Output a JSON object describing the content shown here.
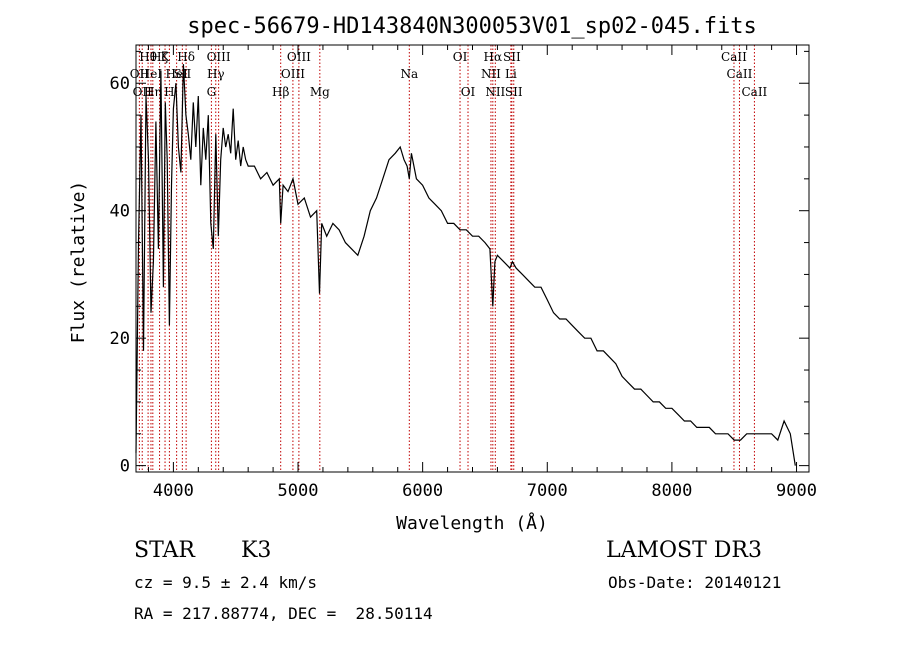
{
  "chart_data": {
    "type": "line",
    "title": "spec-56679-HD143840N300053V01_sp02-045.fits",
    "xlabel": "Wavelength (Å)",
    "ylabel": "Flux (relative)",
    "xlim": [
      3700,
      9100
    ],
    "ylim": [
      -1,
      66
    ],
    "x_ticks": [
      4000,
      5000,
      6000,
      7000,
      8000,
      9000
    ],
    "y_ticks": [
      0,
      20,
      40,
      60
    ],
    "grid": false,
    "series": [
      {
        "x": [
          3700,
          3720,
          3740,
          3760,
          3780,
          3800,
          3820,
          3840,
          3860,
          3880,
          3900,
          3920,
          3935,
          3950,
          3968,
          3985,
          4000,
          4020,
          4040,
          4060,
          4080,
          4100,
          4120,
          4140,
          4160,
          4180,
          4200,
          4220,
          4240,
          4260,
          4280,
          4300,
          4320,
          4340,
          4360,
          4380,
          4400,
          4420,
          4440,
          4460,
          4480,
          4500,
          4520,
          4540,
          4560,
          4580,
          4600,
          4650,
          4700,
          4750,
          4800,
          4850,
          4861,
          4880,
          4920,
          4960,
          5000,
          5050,
          5100,
          5150,
          5172,
          5190,
          5230,
          5280,
          5330,
          5380,
          5430,
          5480,
          5530,
          5580,
          5630,
          5680,
          5730,
          5780,
          5820,
          5850,
          5875,
          5893,
          5910,
          5950,
          6000,
          6050,
          6100,
          6150,
          6200,
          6250,
          6300,
          6350,
          6400,
          6450,
          6500,
          6540,
          6563,
          6580,
          6600,
          6650,
          6700,
          6720,
          6750,
          6800,
          6850,
          6900,
          6950,
          7000,
          7050,
          7100,
          7150,
          7200,
          7250,
          7300,
          7350,
          7400,
          7450,
          7500,
          7550,
          7600,
          7650,
          7700,
          7750,
          7800,
          7850,
          7900,
          7950,
          8000,
          8050,
          8100,
          8150,
          8200,
          8250,
          8300,
          8350,
          8400,
          8450,
          8500,
          8550,
          8600,
          8650,
          8700,
          8750,
          8800,
          8850,
          8900,
          8950,
          8990
        ],
        "y": [
          2,
          35,
          55,
          18,
          58,
          48,
          24,
          32,
          54,
          34,
          62,
          28,
          57,
          48,
          22,
          44,
          56,
          60,
          50,
          46,
          63,
          55,
          52,
          48,
          57,
          50,
          58,
          44,
          53,
          48,
          55,
          38,
          34,
          52,
          36,
          48,
          53,
          50,
          52,
          49,
          56,
          48,
          51,
          47,
          50,
          48,
          47,
          47,
          45,
          46,
          44,
          45,
          38,
          44,
          43,
          45,
          41,
          42,
          39,
          40,
          27,
          38,
          36,
          38,
          37,
          35,
          34,
          33,
          36,
          40,
          42,
          45,
          48,
          49,
          50,
          48,
          47,
          45,
          49,
          45,
          44,
          42,
          41,
          40,
          38,
          38,
          37,
          37,
          36,
          36,
          35,
          34,
          25,
          32,
          33,
          32,
          31,
          32,
          31,
          30,
          29,
          28,
          28,
          26,
          24,
          23,
          23,
          22,
          21,
          20,
          20,
          18,
          18,
          17,
          16,
          14,
          13,
          12,
          12,
          11,
          10,
          10,
          9,
          9,
          8,
          7,
          7,
          6,
          6,
          6,
          5,
          5,
          5,
          4,
          4,
          5,
          5,
          5,
          5,
          5,
          4,
          7,
          5,
          0
        ]
      }
    ],
    "lines": [
      {
        "x": 3727,
        "label": "OII",
        "row": 1
      },
      {
        "x": 3750,
        "label": "OII",
        "row": 2
      },
      {
        "x": 3797,
        "label": "Hθ",
        "row": 0
      },
      {
        "x": 3820,
        "label": "HeI",
        "row": 1
      },
      {
        "x": 3835,
        "label": "Hη",
        "row": 2
      },
      {
        "x": 3889,
        "label": "Hζ",
        "row": 0
      },
      {
        "x": 3933,
        "label": "K",
        "row": 0
      },
      {
        "x": 3968,
        "label": "H",
        "row": 2
      },
      {
        "x": 4026,
        "label": "HeI",
        "row": 1
      },
      {
        "x": 4102,
        "label": "Hδ",
        "row": 0
      },
      {
        "x": 4072,
        "label": "SII",
        "row": 1
      },
      {
        "x": 4305,
        "label": "G",
        "row": 2
      },
      {
        "x": 4340,
        "label": "Hγ",
        "row": 1
      },
      {
        "x": 4363,
        "label": "OIII",
        "row": 0
      },
      {
        "x": 4861,
        "label": "Hβ",
        "row": 2
      },
      {
        "x": 4959,
        "label": "OIII",
        "row": 1
      },
      {
        "x": 5007,
        "label": "OIII",
        "row": 0
      },
      {
        "x": 5175,
        "label": "Mg",
        "row": 2
      },
      {
        "x": 5893,
        "label": "Na",
        "row": 1
      },
      {
        "x": 6300,
        "label": "OI",
        "row": 0
      },
      {
        "x": 6364,
        "label": "OI",
        "row": 2
      },
      {
        "x": 6548,
        "label": "NII",
        "row": 1
      },
      {
        "x": 6563,
        "label": "Hα",
        "row": 0
      },
      {
        "x": 6583,
        "label": "NII",
        "row": 2
      },
      {
        "x": 6708,
        "label": "Li",
        "row": 1
      },
      {
        "x": 6716,
        "label": "SII",
        "row": 0
      },
      {
        "x": 6731,
        "label": "SII",
        "row": 2
      },
      {
        "x": 8498,
        "label": "CaII",
        "row": 0
      },
      {
        "x": 8542,
        "label": "CaII",
        "row": 1
      },
      {
        "x": 8662,
        "label": "CaII",
        "row": 2
      }
    ]
  },
  "info": {
    "object_class": "STAR",
    "subclass": "K3",
    "survey": "LAMOST DR3",
    "cz": "cz = 9.5 ± 2.4 km/s",
    "obs_date": "Obs-Date: 20140121",
    "coords": "RA = 217.88774, DEC =  28.50114"
  }
}
